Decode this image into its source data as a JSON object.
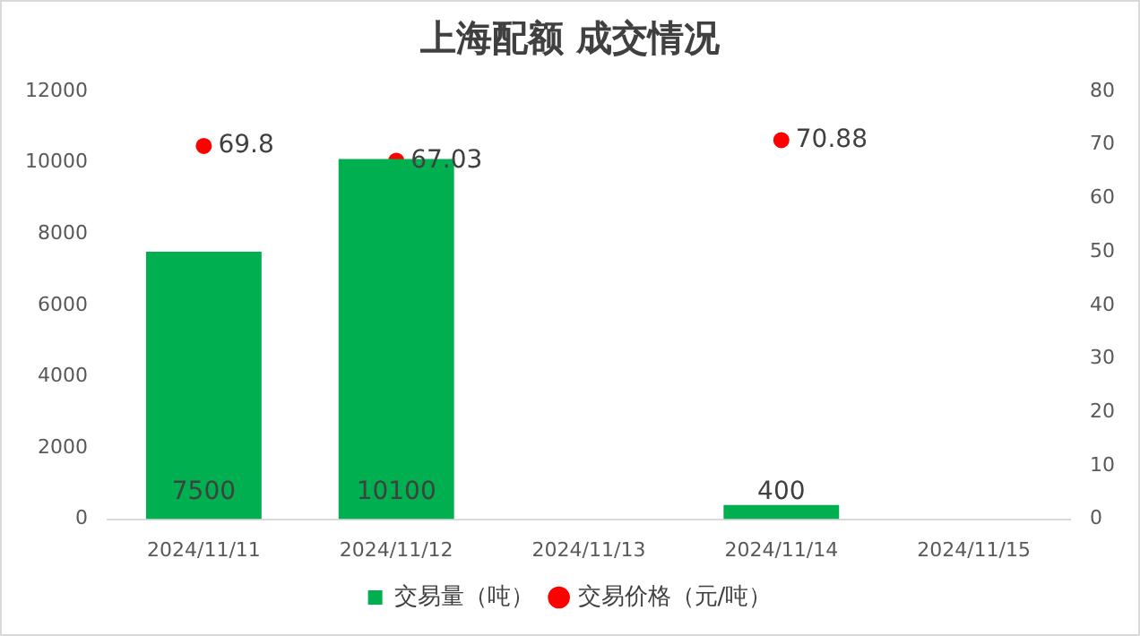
{
  "chart_data": {
    "type": "bar",
    "title": "上海配额 成交情况",
    "categories": [
      "2024/11/11",
      "2024/11/12",
      "2024/11/13",
      "2024/11/14",
      "2024/11/15"
    ],
    "series": [
      {
        "name": "交易量（吨）",
        "color": "#00b050",
        "values": [
          7500,
          10100,
          null,
          400,
          null
        ]
      },
      {
        "name": "交易价格（元/吨）",
        "type": "scatter",
        "axis": "y2",
        "color": "#ff0000",
        "values": [
          69.8,
          67.03,
          null,
          70.88,
          null
        ]
      }
    ],
    "ylim": [
      0,
      12000
    ],
    "yticks": [
      0,
      2000,
      4000,
      6000,
      8000,
      10000,
      12000
    ],
    "y2lim": [
      0,
      80
    ],
    "y2ticks": [
      0,
      10,
      20,
      30,
      40,
      50,
      60,
      70,
      80
    ],
    "data_labels": true,
    "legend": "bottom",
    "grid": false,
    "marker": "circle"
  }
}
